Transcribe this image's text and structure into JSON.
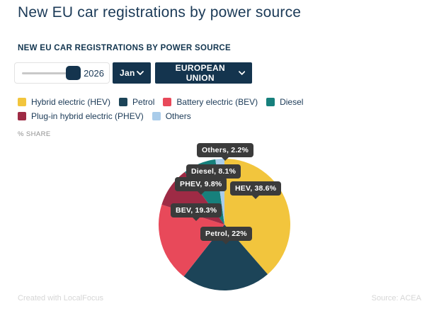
{
  "page": {
    "title": "New EU car registrations by power source"
  },
  "widget": {
    "heading": "NEW EU CAR REGISTRATIONS BY POWER SOURCE",
    "unit_label": "% SHARE",
    "controls": {
      "year_slider": {
        "value": "2026"
      },
      "month_dropdown": {
        "value": "Jan"
      },
      "region_dropdown": {
        "value": "EUROPEAN UNION"
      }
    },
    "footer": {
      "left": "Created with LocalFocus",
      "right": "Source: ACEA"
    }
  },
  "colors": {
    "accent_navy": "#14344e",
    "title_text": "#1b3a57",
    "tooltip_bg": "#3b3b3b",
    "hev": "#f2c53d",
    "petrol": "#1c4458",
    "bev": "#e8495a",
    "diesel": "#17807c",
    "phev": "#9e2b45",
    "others": "#a9ccea"
  },
  "legend": {
    "items": [
      {
        "key": "hev",
        "label": "Hybrid electric (HEV)",
        "color": "#f2c53d"
      },
      {
        "key": "petrol",
        "label": "Petrol",
        "color": "#1c4458"
      },
      {
        "key": "bev",
        "label": "Battery electric (BEV)",
        "color": "#e8495a"
      },
      {
        "key": "diesel",
        "label": "Diesel",
        "color": "#17807c"
      },
      {
        "key": "phev",
        "label": "Plug-in hybrid electric (PHEV)",
        "color": "#9e2b45"
      },
      {
        "key": "others",
        "label": "Others",
        "color": "#a9ccea"
      }
    ]
  },
  "chart_data": {
    "type": "pie",
    "title": "NEW EU CAR REGISTRATIONS BY POWER SOURCE",
    "unit": "% share",
    "period": "Jan 2026",
    "region": "European Union",
    "start_angle_deg": 0,
    "direction": "clockwise",
    "slices": [
      {
        "key": "hev",
        "name": "Hybrid electric (HEV)",
        "value": 38.6,
        "label": "HEV, 38.6%",
        "color": "#f2c53d"
      },
      {
        "key": "petrol",
        "name": "Petrol",
        "value": 22,
        "label": "Petrol, 22%",
        "color": "#1c4458"
      },
      {
        "key": "bev",
        "name": "Battery electric (BEV)",
        "value": 19.3,
        "label": "BEV, 19.3%",
        "color": "#e8495a"
      },
      {
        "key": "phev",
        "name": "Plug-in hybrid electric (PHEV)",
        "value": 9.8,
        "label": "PHEV, 9.8%",
        "color": "#9e2b45"
      },
      {
        "key": "diesel",
        "name": "Diesel",
        "value": 8.1,
        "label": "Diesel, 8.1%",
        "color": "#17807c"
      },
      {
        "key": "others",
        "name": "Others",
        "value": 2.2,
        "label": "Others, 2.2%",
        "color": "#a9ccea"
      }
    ]
  }
}
